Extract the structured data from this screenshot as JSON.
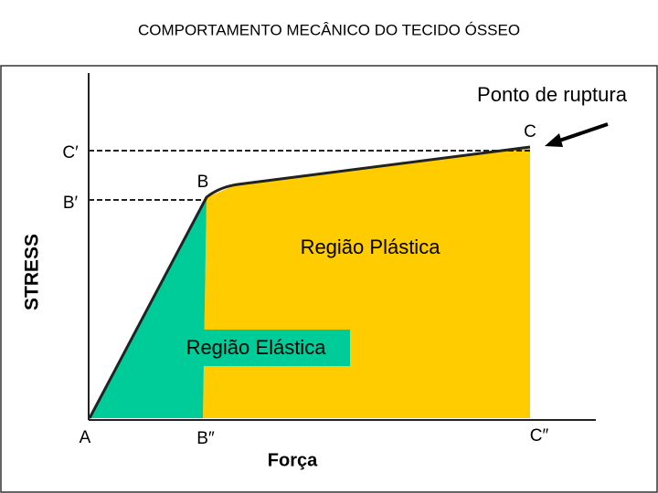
{
  "header": {
    "title": "COMPORTAMENTO MECÂNICO DO TECIDO ÓSSEO"
  },
  "diagram": {
    "y_axis_label": "STRESS",
    "x_axis_label": "Força",
    "points": {
      "A": "A",
      "B": "B",
      "C": "C",
      "B_prime": "B′",
      "C_prime": "C′",
      "B_double_prime": "B″",
      "C_double_prime": "C″"
    },
    "regions": {
      "plastic": "Região Plástica",
      "elastic": "Região Elástica"
    },
    "annotation": "Ponto de ruptura"
  }
}
